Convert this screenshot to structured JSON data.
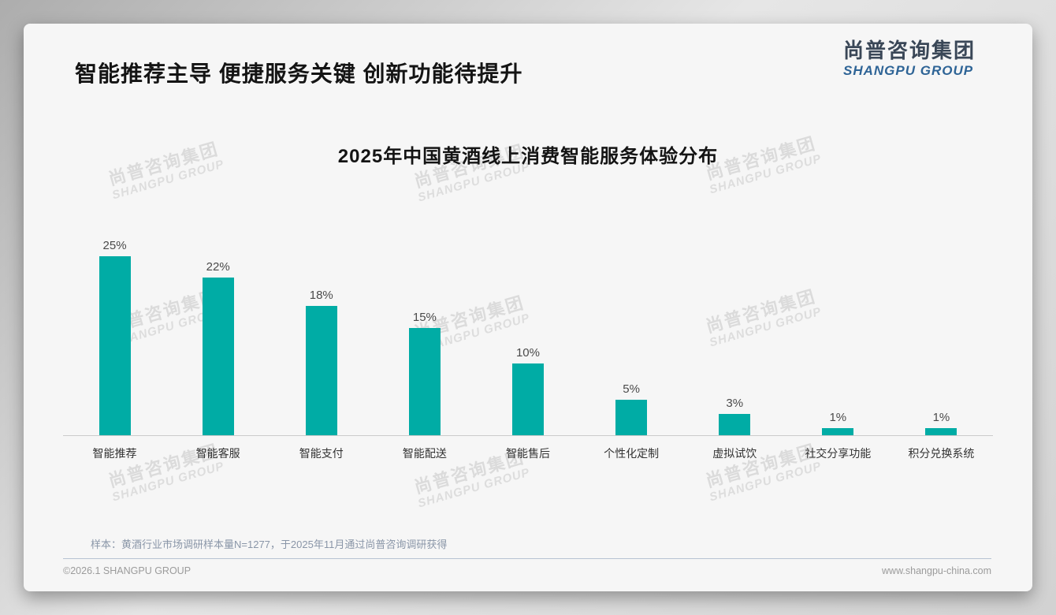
{
  "slide": {
    "header_title": "智能推荐主导 便捷服务关键 创新功能待提升",
    "logo": {
      "name_cn": "尚普咨询集团",
      "name_en": "SHANGPU GROUP"
    },
    "watermark": {
      "line_cn": "尚普咨询集团",
      "line_en": "SHANGPU GROUP"
    },
    "footnote": "样本：黄酒行业市场调研样本量N=1277，于2025年11月通过尚普咨询调研获得",
    "footer": {
      "copyright": "©2026.1 SHANGPU GROUP",
      "website": "www.shangpu-china.com"
    }
  },
  "chart_data": {
    "type": "bar",
    "title": "2025年中国黄酒线上消费智能服务体验分布",
    "categories": [
      "智能推荐",
      "智能客服",
      "智能支付",
      "智能配送",
      "智能售后",
      "个性化定制",
      "虚拟试饮",
      "社交分享功能",
      "积分兑换系统"
    ],
    "values": [
      25,
      22,
      18,
      15,
      10,
      5,
      3,
      1,
      1
    ],
    "value_labels": [
      "25%",
      "22%",
      "18%",
      "15%",
      "10%",
      "5%",
      "3%",
      "1%",
      "1%"
    ],
    "unit": "%",
    "ylim": [
      0,
      25
    ],
    "grid": false,
    "legend": false,
    "data_labels_position": "above-bar",
    "bar_color": "#00ACA5",
    "axis_line_color": "#cbcbcb"
  },
  "colors": {
    "accent_teal": "#00ACA5",
    "logo_cn_text": "#3a4757",
    "logo_en_text": "#2e6496",
    "note_text": "#8a96a8",
    "divider": "#b7c3d3",
    "footer_text": "#9b9b9b",
    "card_background": "#f6f6f6"
  }
}
